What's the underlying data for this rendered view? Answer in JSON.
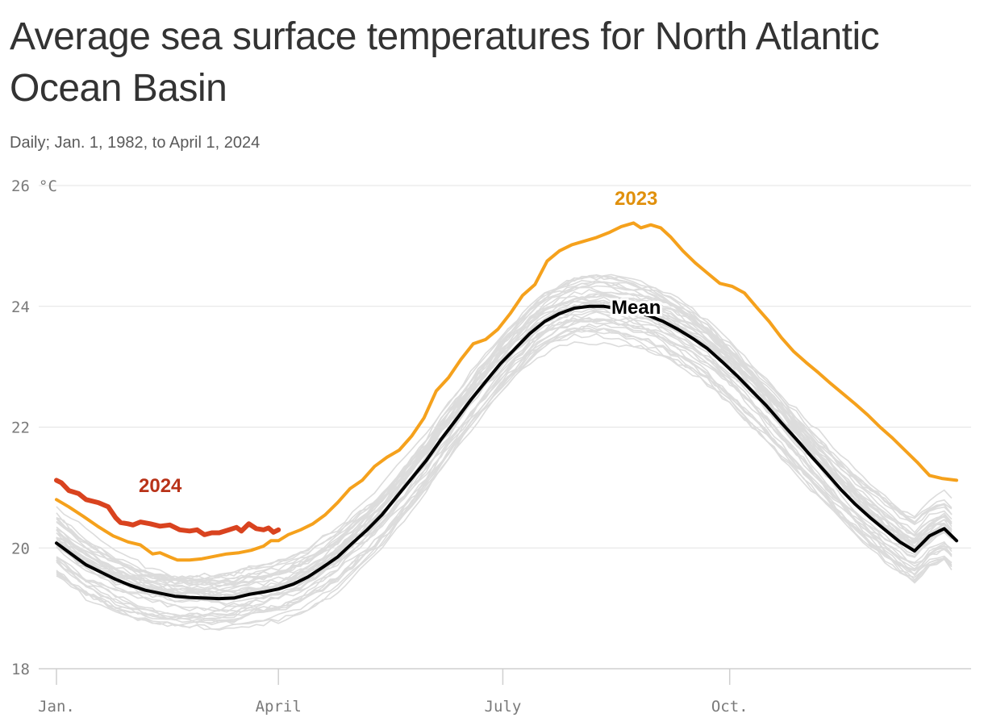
{
  "chart_data": {
    "type": "line",
    "title": "Average sea surface temperatures for North Atlantic Ocean Basin",
    "subtitle": "Daily; Jan. 1, 1982, to April 1, 2024",
    "y_unit": "°C",
    "ylim": [
      18,
      26
    ],
    "yticks": [
      {
        "value": 18,
        "label": "18"
      },
      {
        "value": 20,
        "label": "20"
      },
      {
        "value": 22,
        "label": "22"
      },
      {
        "value": 24,
        "label": "24"
      },
      {
        "value": 26,
        "label": "26"
      }
    ],
    "xlim": [
      1,
      366
    ],
    "xticks": [
      {
        "day": 1,
        "label": "Jan."
      },
      {
        "day": 91,
        "label": "April"
      },
      {
        "day": 182,
        "label": "July"
      },
      {
        "day": 274,
        "label": "Oct."
      }
    ],
    "grid": true,
    "colors": {
      "year_2024": "#d9431f",
      "year_2023": "#f5a11c",
      "mean": "#000000",
      "other_years": "#dcdcdc",
      "grid": "#e3e3e3",
      "label_2024": "#b83218",
      "label_2023": "#e0900c"
    },
    "series": [
      {
        "name": "2024",
        "points": [
          [
            1,
            21.12
          ],
          [
            3,
            21.08
          ],
          [
            6,
            20.95
          ],
          [
            10,
            20.9
          ],
          [
            13,
            20.8
          ],
          [
            18,
            20.75
          ],
          [
            22,
            20.68
          ],
          [
            25,
            20.5
          ],
          [
            27,
            20.42
          ],
          [
            30,
            20.4
          ],
          [
            32,
            20.38
          ],
          [
            35,
            20.43
          ],
          [
            39,
            20.4
          ],
          [
            43,
            20.36
          ],
          [
            47,
            20.38
          ],
          [
            51,
            20.3
          ],
          [
            55,
            20.28
          ],
          [
            58,
            20.3
          ],
          [
            61,
            20.22
          ],
          [
            64,
            20.25
          ],
          [
            67,
            20.25
          ],
          [
            71,
            20.3
          ],
          [
            74,
            20.34
          ],
          [
            76,
            20.28
          ],
          [
            79,
            20.4
          ],
          [
            82,
            20.32
          ],
          [
            85,
            20.3
          ],
          [
            87,
            20.33
          ],
          [
            89,
            20.26
          ],
          [
            91,
            20.3
          ]
        ]
      },
      {
        "name": "2023",
        "points": [
          [
            1,
            20.8
          ],
          [
            6,
            20.68
          ],
          [
            12,
            20.52
          ],
          [
            18,
            20.35
          ],
          [
            24,
            20.2
          ],
          [
            30,
            20.1
          ],
          [
            35,
            20.05
          ],
          [
            40,
            19.9
          ],
          [
            43,
            19.92
          ],
          [
            47,
            19.85
          ],
          [
            50,
            19.8
          ],
          [
            55,
            19.8
          ],
          [
            60,
            19.82
          ],
          [
            65,
            19.86
          ],
          [
            70,
            19.9
          ],
          [
            75,
            19.92
          ],
          [
            80,
            19.96
          ],
          [
            85,
            20.03
          ],
          [
            88,
            20.12
          ],
          [
            91,
            20.12
          ],
          [
            95,
            20.22
          ],
          [
            100,
            20.3
          ],
          [
            105,
            20.4
          ],
          [
            110,
            20.55
          ],
          [
            115,
            20.75
          ],
          [
            120,
            20.98
          ],
          [
            125,
            21.12
          ],
          [
            130,
            21.35
          ],
          [
            135,
            21.5
          ],
          [
            140,
            21.62
          ],
          [
            145,
            21.85
          ],
          [
            150,
            22.15
          ],
          [
            155,
            22.6
          ],
          [
            160,
            22.82
          ],
          [
            165,
            23.12
          ],
          [
            170,
            23.38
          ],
          [
            175,
            23.45
          ],
          [
            180,
            23.62
          ],
          [
            185,
            23.88
          ],
          [
            190,
            24.18
          ],
          [
            195,
            24.36
          ],
          [
            200,
            24.75
          ],
          [
            205,
            24.92
          ],
          [
            210,
            25.02
          ],
          [
            215,
            25.08
          ],
          [
            220,
            25.14
          ],
          [
            225,
            25.22
          ],
          [
            230,
            25.32
          ],
          [
            235,
            25.38
          ],
          [
            238,
            25.3
          ],
          [
            242,
            25.35
          ],
          [
            246,
            25.3
          ],
          [
            250,
            25.15
          ],
          [
            255,
            24.92
          ],
          [
            260,
            24.72
          ],
          [
            265,
            24.55
          ],
          [
            270,
            24.38
          ],
          [
            275,
            24.33
          ],
          [
            280,
            24.22
          ],
          [
            285,
            23.98
          ],
          [
            290,
            23.75
          ],
          [
            295,
            23.48
          ],
          [
            300,
            23.25
          ],
          [
            305,
            23.07
          ],
          [
            310,
            22.9
          ],
          [
            315,
            22.72
          ],
          [
            320,
            22.55
          ],
          [
            325,
            22.38
          ],
          [
            330,
            22.2
          ],
          [
            335,
            22.0
          ],
          [
            340,
            21.82
          ],
          [
            345,
            21.62
          ],
          [
            350,
            21.42
          ],
          [
            355,
            21.2
          ],
          [
            360,
            21.15
          ],
          [
            366,
            21.12
          ]
        ]
      },
      {
        "name": "Mean",
        "points": [
          [
            1,
            20.08
          ],
          [
            7,
            19.9
          ],
          [
            13,
            19.72
          ],
          [
            19,
            19.6
          ],
          [
            25,
            19.48
          ],
          [
            31,
            19.38
          ],
          [
            37,
            19.3
          ],
          [
            43,
            19.25
          ],
          [
            49,
            19.2
          ],
          [
            55,
            19.18
          ],
          [
            61,
            19.17
          ],
          [
            67,
            19.16
          ],
          [
            73,
            19.17
          ],
          [
            79,
            19.23
          ],
          [
            85,
            19.27
          ],
          [
            91,
            19.32
          ],
          [
            97,
            19.4
          ],
          [
            103,
            19.52
          ],
          [
            109,
            19.68
          ],
          [
            115,
            19.85
          ],
          [
            121,
            20.08
          ],
          [
            127,
            20.3
          ],
          [
            133,
            20.55
          ],
          [
            139,
            20.85
          ],
          [
            145,
            21.15
          ],
          [
            151,
            21.45
          ],
          [
            157,
            21.8
          ],
          [
            163,
            22.12
          ],
          [
            169,
            22.45
          ],
          [
            175,
            22.75
          ],
          [
            181,
            23.05
          ],
          [
            187,
            23.3
          ],
          [
            193,
            23.55
          ],
          [
            199,
            23.75
          ],
          [
            205,
            23.88
          ],
          [
            211,
            23.97
          ],
          [
            217,
            24.0
          ],
          [
            223,
            24.0
          ],
          [
            229,
            23.96
          ],
          [
            235,
            23.91
          ],
          [
            241,
            23.85
          ],
          [
            247,
            23.75
          ],
          [
            253,
            23.62
          ],
          [
            259,
            23.47
          ],
          [
            265,
            23.3
          ],
          [
            271,
            23.08
          ],
          [
            277,
            22.85
          ],
          [
            283,
            22.6
          ],
          [
            289,
            22.35
          ],
          [
            295,
            22.07
          ],
          [
            301,
            21.8
          ],
          [
            307,
            21.52
          ],
          [
            313,
            21.25
          ],
          [
            319,
            20.97
          ],
          [
            325,
            20.72
          ],
          [
            331,
            20.5
          ],
          [
            337,
            20.3
          ],
          [
            343,
            20.1
          ],
          [
            349,
            19.95
          ],
          [
            355,
            20.2
          ],
          [
            361,
            20.32
          ],
          [
            366,
            20.12
          ]
        ]
      }
    ],
    "background_years": {
      "note_visible": false,
      "count": 40
    },
    "labels": {
      "label_2024": "2024",
      "label_2023": "2023",
      "label_mean": "Mean"
    }
  }
}
